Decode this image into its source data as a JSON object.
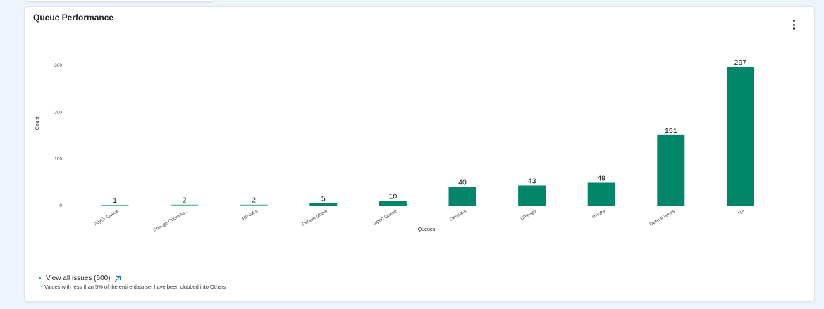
{
  "card": {
    "title": "Queue Performance"
  },
  "footer": {
    "view_all_label": "View all issues (600)",
    "note_star": "*",
    "note": "Values with less than 5% of the entire data set have been clubbed into Others"
  },
  "colors": {
    "bar_fill": "#00876a",
    "bar_fill_light": "#5dbfa3",
    "link_arrow": "#1f6fd1"
  },
  "icons": {
    "menu": "kebab-menu-icon",
    "link": "external-arrow-icon"
  },
  "chart_data": {
    "type": "bar",
    "title": "Queue Performance",
    "xlabel": "Queues",
    "ylabel": "Count",
    "ylim": [
      0,
      300
    ],
    "yticks": [
      0,
      100,
      200,
      300
    ],
    "grid": false,
    "categories": [
      "20jILY Queue",
      "Change Coordina...",
      "HR-infra",
      "Default-global",
      "Japan Queue",
      "Default-it",
      "Chicago",
      "IT-infra",
      "Default-james",
      "NA"
    ],
    "values": [
      1,
      2,
      2,
      5,
      10,
      40,
      43,
      49,
      151,
      297
    ]
  }
}
